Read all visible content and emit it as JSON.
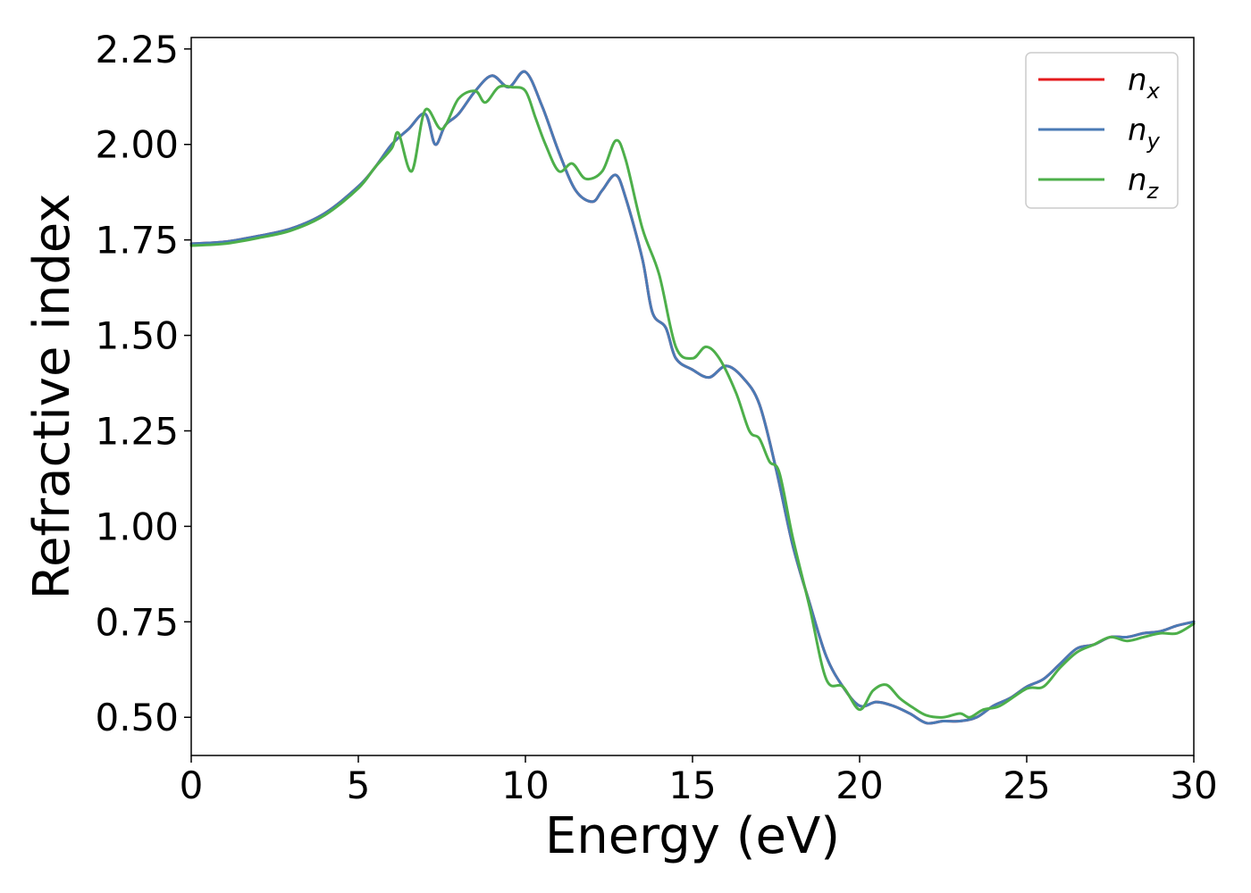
{
  "chart_data": {
    "type": "line",
    "title": "",
    "xlabel": "Energy (eV)",
    "ylabel": "Refractive index",
    "xlim": [
      0,
      30
    ],
    "ylim": [
      0.4,
      2.28
    ],
    "xticks": [
      0,
      5,
      10,
      15,
      20,
      25,
      30
    ],
    "xtick_labels": [
      "0",
      "5",
      "10",
      "15",
      "20",
      "25",
      "30"
    ],
    "yticks": [
      0.5,
      0.75,
      1.0,
      1.25,
      1.5,
      1.75,
      2.0,
      2.25
    ],
    "ytick_labels": [
      "0.50",
      "0.75",
      "1.00",
      "1.25",
      "1.50",
      "1.75",
      "2.00",
      "2.25"
    ],
    "grid": false,
    "legend_position": "top-right",
    "series": [
      {
        "name": "n_x",
        "legend_main": "n",
        "legend_sub": "x",
        "color": "#e41a1c",
        "x": [
          0,
          1,
          2,
          3,
          4,
          5,
          5.5,
          6,
          6.5,
          7,
          7.3,
          7.6,
          8,
          8.5,
          9,
          9.5,
          10,
          10.5,
          11,
          11.5,
          12,
          12.3,
          12.7,
          13,
          13.5,
          13.8,
          14.2,
          14.5,
          15,
          15.5,
          16,
          16.5,
          17,
          17.5,
          18,
          18.5,
          19,
          19.5,
          20,
          20.5,
          21,
          21.5,
          22,
          22.5,
          23,
          23.5,
          24,
          24.5,
          25,
          25.5,
          26,
          26.5,
          27,
          27.5,
          28,
          28.5,
          29,
          29.5,
          30
        ],
        "y": [
          1.74,
          1.745,
          1.76,
          1.78,
          1.82,
          1.89,
          1.94,
          2.0,
          2.04,
          2.08,
          2.0,
          2.05,
          2.08,
          2.14,
          2.18,
          2.15,
          2.19,
          2.1,
          1.98,
          1.88,
          1.85,
          1.88,
          1.92,
          1.86,
          1.7,
          1.56,
          1.52,
          1.44,
          1.41,
          1.39,
          1.42,
          1.39,
          1.32,
          1.15,
          0.95,
          0.8,
          0.66,
          0.58,
          0.53,
          0.54,
          0.53,
          0.51,
          0.485,
          0.49,
          0.49,
          0.5,
          0.53,
          0.55,
          0.58,
          0.6,
          0.64,
          0.68,
          0.69,
          0.71,
          0.71,
          0.72,
          0.725,
          0.74,
          0.75
        ]
      },
      {
        "name": "n_y",
        "legend_main": "n",
        "legend_sub": "y",
        "color": "#4a7ab5",
        "x": [
          0,
          1,
          2,
          3,
          4,
          5,
          5.5,
          6,
          6.5,
          7,
          7.3,
          7.6,
          8,
          8.5,
          9,
          9.5,
          10,
          10.5,
          11,
          11.5,
          12,
          12.3,
          12.7,
          13,
          13.5,
          13.8,
          14.2,
          14.5,
          15,
          15.5,
          16,
          16.5,
          17,
          17.5,
          18,
          18.5,
          19,
          19.5,
          20,
          20.5,
          21,
          21.5,
          22,
          22.5,
          23,
          23.5,
          24,
          24.5,
          25,
          25.5,
          26,
          26.5,
          27,
          27.5,
          28,
          28.5,
          29,
          29.5,
          30
        ],
        "y": [
          1.74,
          1.745,
          1.76,
          1.78,
          1.82,
          1.89,
          1.94,
          2.0,
          2.04,
          2.08,
          2.0,
          2.05,
          2.08,
          2.14,
          2.18,
          2.15,
          2.19,
          2.1,
          1.98,
          1.88,
          1.85,
          1.88,
          1.92,
          1.86,
          1.7,
          1.56,
          1.52,
          1.44,
          1.41,
          1.39,
          1.42,
          1.39,
          1.32,
          1.15,
          0.95,
          0.8,
          0.66,
          0.58,
          0.53,
          0.54,
          0.53,
          0.51,
          0.485,
          0.49,
          0.49,
          0.5,
          0.53,
          0.55,
          0.58,
          0.6,
          0.64,
          0.68,
          0.69,
          0.71,
          0.71,
          0.72,
          0.725,
          0.74,
          0.75
        ]
      },
      {
        "name": "n_z",
        "legend_main": "n",
        "legend_sub": "z",
        "color": "#4daf4a",
        "x": [
          0,
          1,
          2,
          3,
          4,
          5,
          5.5,
          6,
          6.2,
          6.6,
          7,
          7.5,
          8,
          8.5,
          8.8,
          9.2,
          9.6,
          10,
          10.3,
          10.6,
          11,
          11.4,
          11.8,
          12.3,
          12.7,
          13,
          13.5,
          14,
          14.5,
          15,
          15.4,
          15.8,
          16.3,
          16.7,
          17,
          17.3,
          17.6,
          18,
          18.5,
          19,
          19.5,
          20,
          20.4,
          20.8,
          21.2,
          21.6,
          22,
          22.5,
          23,
          23.3,
          23.7,
          24.2,
          25,
          25.5,
          26,
          26.5,
          27,
          27.5,
          28,
          28.5,
          29,
          29.5,
          30
        ],
        "y": [
          1.735,
          1.74,
          1.755,
          1.775,
          1.815,
          1.885,
          1.94,
          1.99,
          2.03,
          1.93,
          2.09,
          2.04,
          2.12,
          2.14,
          2.11,
          2.15,
          2.15,
          2.14,
          2.07,
          2.0,
          1.93,
          1.95,
          1.91,
          1.93,
          2.01,
          1.96,
          1.78,
          1.66,
          1.47,
          1.44,
          1.47,
          1.44,
          1.35,
          1.25,
          1.23,
          1.17,
          1.14,
          0.97,
          0.79,
          0.6,
          0.58,
          0.52,
          0.57,
          0.585,
          0.55,
          0.525,
          0.505,
          0.5,
          0.51,
          0.5,
          0.52,
          0.53,
          0.575,
          0.58,
          0.63,
          0.67,
          0.69,
          0.71,
          0.7,
          0.71,
          0.72,
          0.72,
          0.745
        ]
      }
    ]
  }
}
